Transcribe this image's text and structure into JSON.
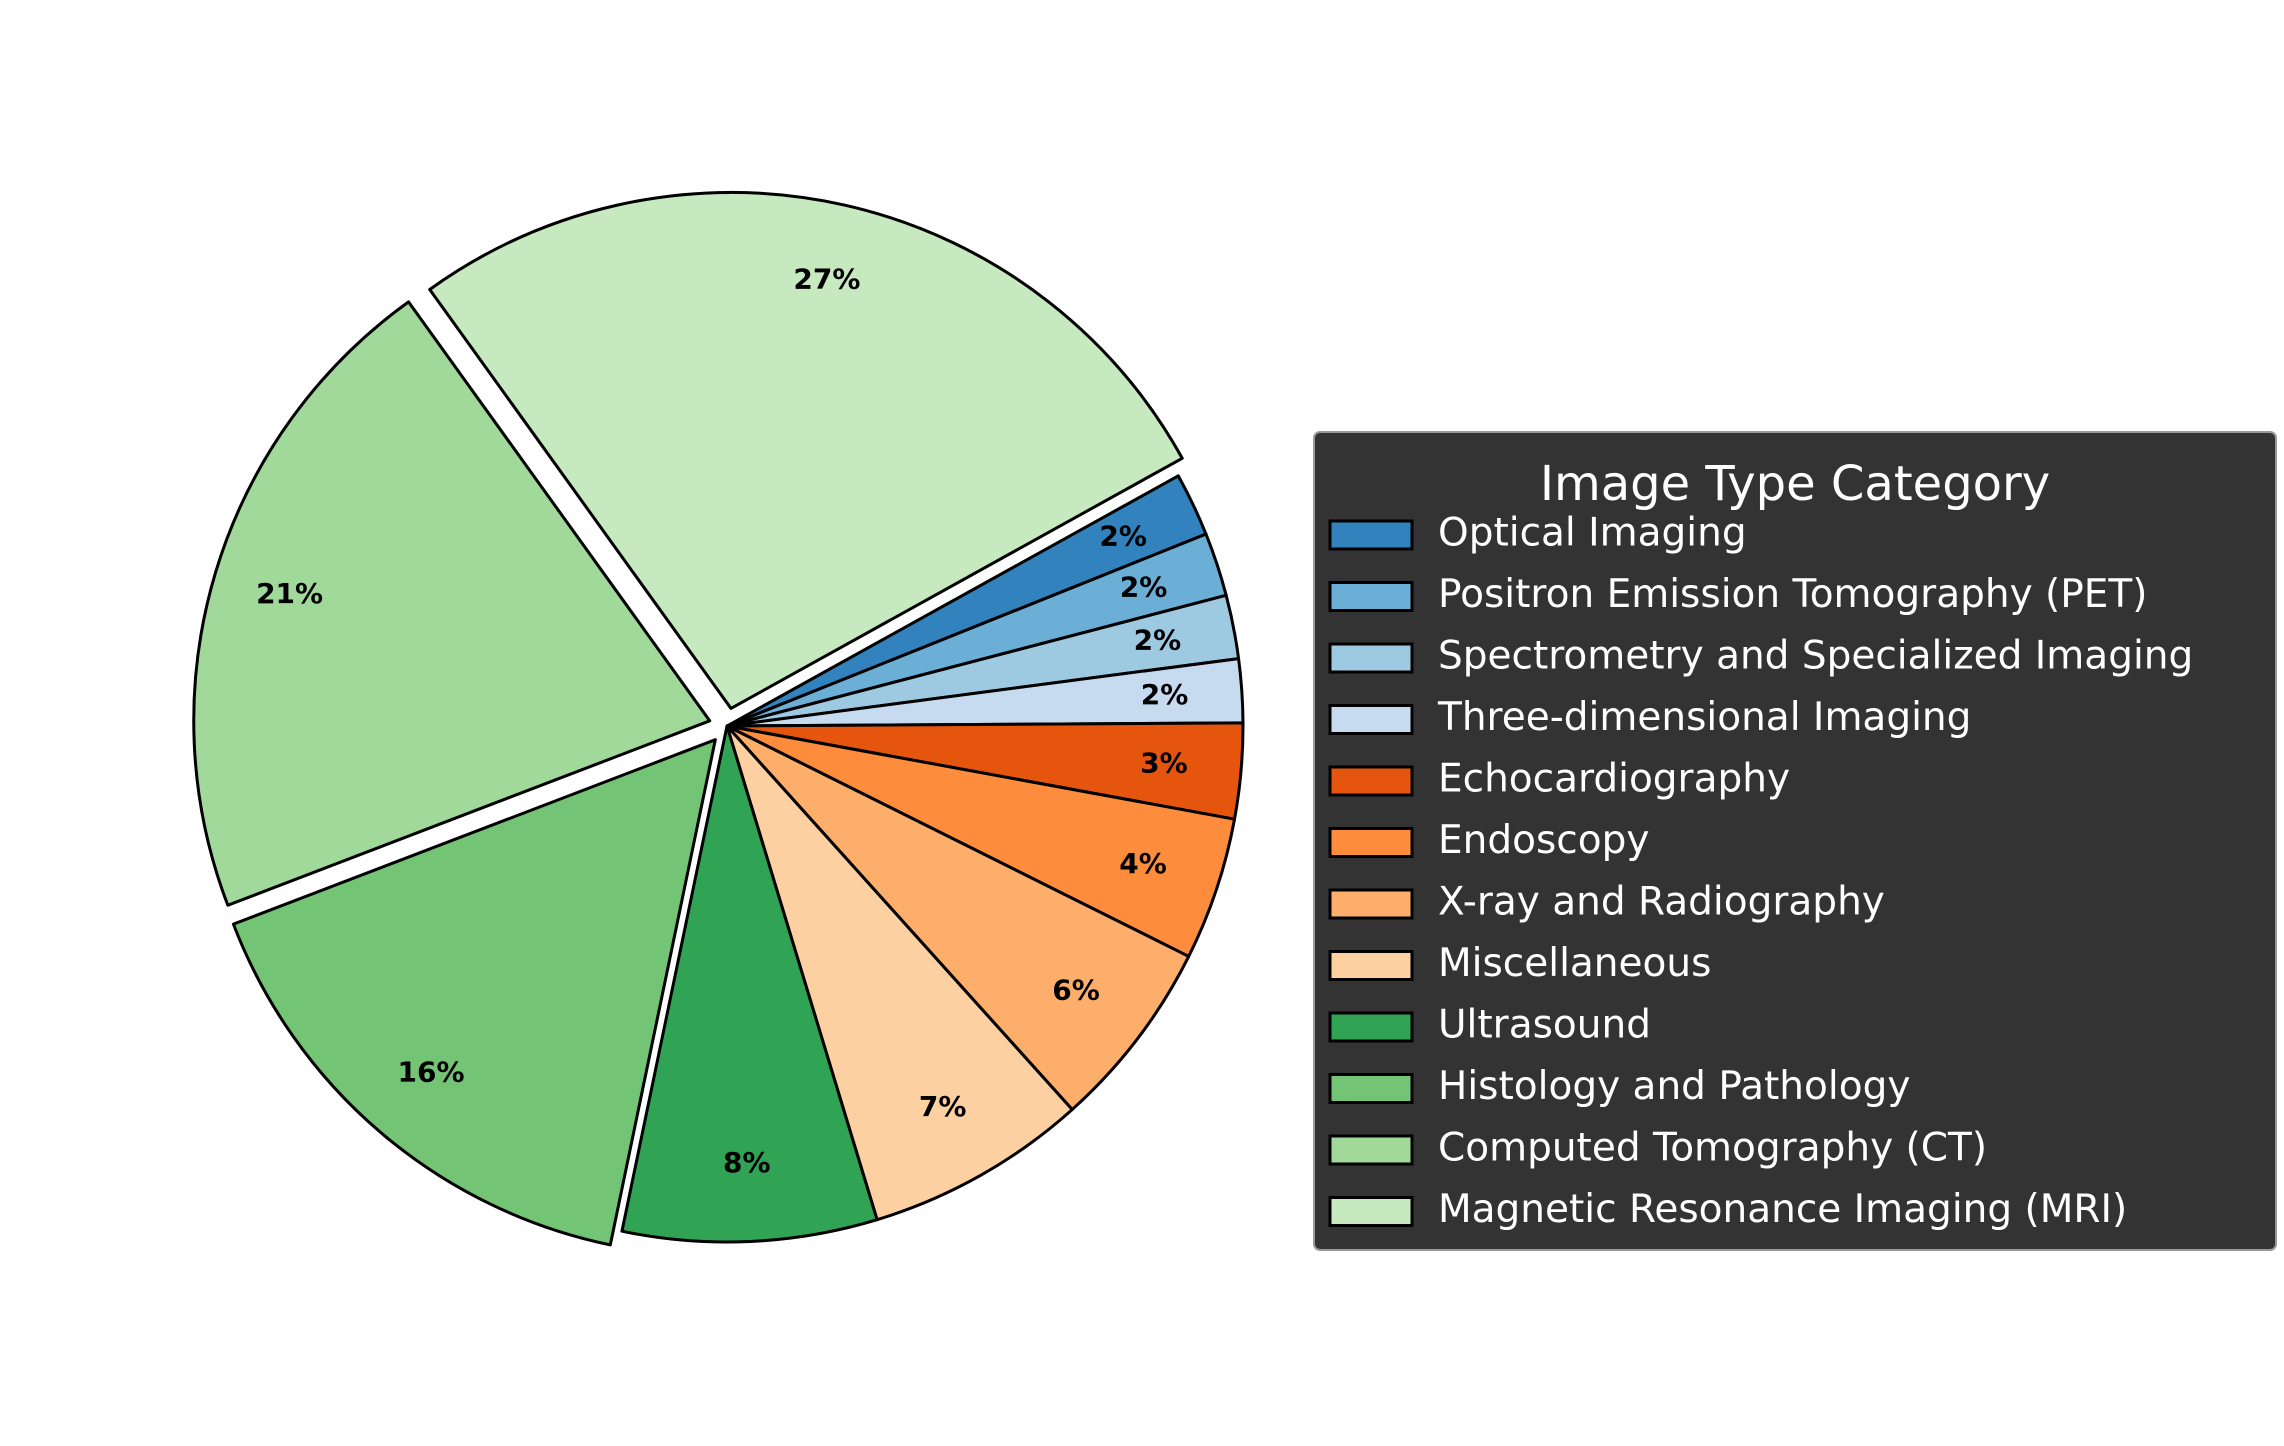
{
  "chart_data": {
    "type": "pie",
    "slices": [
      {
        "label": "Optical Imaging",
        "value": 2,
        "display": "2%",
        "color": "#3182bd",
        "explode": false
      },
      {
        "label": "Positron Emission Tomography (PET)",
        "value": 2,
        "display": "2%",
        "color": "#6baed6",
        "explode": false
      },
      {
        "label": "Spectrometry and Specialized Imaging",
        "value": 2,
        "display": "2%",
        "color": "#9ecae1",
        "explode": false
      },
      {
        "label": "Three-dimensional Imaging",
        "value": 2,
        "display": "2%",
        "color": "#c6dbef",
        "explode": false
      },
      {
        "label": "Echocardiography",
        "value": 3,
        "display": "3%",
        "color": "#e6550d",
        "explode": false
      },
      {
        "label": "Endoscopy",
        "value": 4.5,
        "display": "4%",
        "color": "#fd8d3c",
        "explode": false
      },
      {
        "label": "X-ray and Radiography",
        "value": 6,
        "display": "6%",
        "color": "#fdae6b",
        "explode": false
      },
      {
        "label": "Miscellaneous",
        "value": 7,
        "display": "7%",
        "color": "#fdd0a2",
        "explode": false
      },
      {
        "label": "Ultrasound",
        "value": 8,
        "display": "8%",
        "color": "#31a354",
        "explode": false
      },
      {
        "label": "Histology and Pathology",
        "value": 16,
        "display": "16%",
        "color": "#74c476",
        "explode": true
      },
      {
        "label": "Computed Tomography (CT)",
        "value": 21,
        "display": "21%",
        "color": "#a1d99b",
        "explode": true
      },
      {
        "label": "Magnetic Resonance Imaging (MRI)",
        "value": 27,
        "display": "27%",
        "color": "#c7e9c0",
        "explode": true
      }
    ],
    "start_angle_deg": 29,
    "direction": "clockwise",
    "legend": {
      "title": "Image Type Category",
      "placement": "right",
      "background": "#333333",
      "text_color": "#ffffff"
    },
    "edge_color": "#000000"
  }
}
